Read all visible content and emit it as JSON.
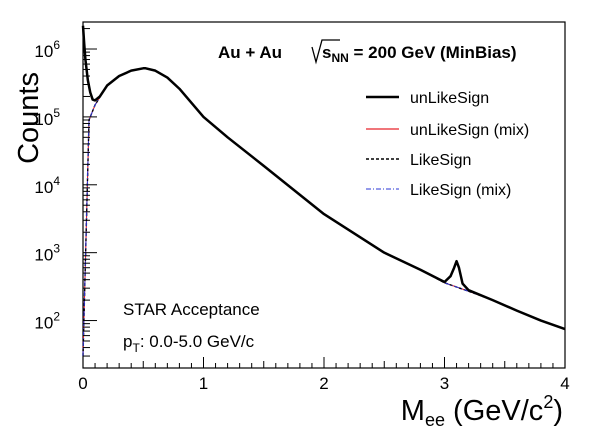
{
  "chart_data": {
    "type": "line",
    "xlabel_main": "M",
    "xlabel_sub": "ee",
    "xlabel_rest": " (GeV/c",
    "xlabel_sup": "2",
    "xlabel_close": ")",
    "ylabel": "Counts",
    "xlim": [
      0,
      4
    ],
    "ylim": [
      20,
      2500000
    ],
    "yscale": "log",
    "x_ticks": [
      0,
      1,
      2,
      3,
      4
    ],
    "x_tick_labels": [
      "0",
      "1",
      "2",
      "3",
      "4"
    ],
    "y_ticks": [
      100,
      1000,
      10000,
      100000,
      1000000
    ],
    "y_tick_base": "10",
    "y_tick_exponents": [
      "2",
      "3",
      "4",
      "5",
      "6"
    ],
    "grid": false,
    "legend_position": "top-right",
    "annotations": {
      "system": "Au + Au",
      "energy_prefix": "s",
      "energy_sub": "NN",
      "energy_suffix": " = 200 GeV (MinBias)",
      "acceptance": "STAR Acceptance",
      "pt_prefix": "p",
      "pt_sub": "T",
      "pt_suffix": ": 0.0-5.0 GeV/c"
    },
    "series": [
      {
        "name": "unLikeSign",
        "color": "#000000",
        "style": "solid-thick",
        "x": [
          0.0,
          0.01,
          0.02,
          0.04,
          0.06,
          0.08,
          0.1,
          0.14,
          0.2,
          0.3,
          0.4,
          0.5,
          0.52,
          0.6,
          0.7,
          0.8,
          1.0,
          1.2,
          1.5,
          2.0,
          2.5,
          2.8,
          3.0,
          3.05,
          3.08,
          3.1,
          3.12,
          3.15,
          3.2,
          3.4,
          3.6,
          3.8,
          4.0
        ],
        "values": [
          2200000,
          1200000,
          700000,
          350000,
          230000,
          180000,
          175000,
          200000,
          290000,
          400000,
          480000,
          520000,
          520000,
          480000,
          380000,
          260000,
          100000,
          50000,
          19000,
          3700,
          1000,
          560,
          370,
          450,
          600,
          750,
          600,
          350,
          280,
          200,
          140,
          100,
          75
        ]
      },
      {
        "name": "unLikeSign (mix)",
        "color": "#e8232a",
        "style": "solid-thin",
        "x": [
          0.0,
          0.05,
          0.1,
          0.14,
          0.2,
          0.3,
          0.4,
          0.5,
          0.52,
          0.6,
          0.7,
          0.8,
          1.0,
          1.2,
          1.5,
          2.0,
          2.5,
          2.8,
          3.0,
          3.2,
          3.4,
          3.6,
          3.8,
          4.0
        ],
        "values": [
          30,
          90000,
          150000,
          195000,
          290000,
          400000,
          480000,
          520000,
          520000,
          480000,
          380000,
          260000,
          100000,
          50000,
          19000,
          3700,
          1000,
          560,
          360,
          270,
          200,
          140,
          100,
          75
        ]
      },
      {
        "name": "LikeSign",
        "color": "#000000",
        "style": "dashed",
        "x": [
          0.0,
          0.05,
          0.1,
          0.14,
          0.2,
          0.3,
          0.4,
          0.5,
          0.52,
          0.6,
          0.7,
          0.8,
          1.0,
          1.2,
          1.5,
          2.0,
          2.5,
          2.8,
          3.0,
          3.2,
          3.4,
          3.6,
          3.8,
          4.0
        ],
        "values": [
          30,
          90000,
          150000,
          195000,
          290000,
          400000,
          480000,
          520000,
          520000,
          480000,
          380000,
          260000,
          100000,
          50000,
          19000,
          3700,
          1000,
          560,
          360,
          270,
          200,
          140,
          100,
          75
        ]
      },
      {
        "name": "LikeSign (mix)",
        "color": "#2a36d6",
        "style": "dashdot",
        "x": [
          0.0,
          0.05,
          0.1,
          0.14,
          0.2,
          0.3,
          0.4,
          0.5,
          0.52,
          0.6,
          0.7,
          0.8,
          1.0,
          1.2,
          1.5,
          2.0,
          2.5,
          2.8,
          3.0,
          3.2,
          3.4,
          3.6,
          3.8,
          4.0
        ],
        "values": [
          30,
          90000,
          150000,
          195000,
          290000,
          400000,
          480000,
          520000,
          520000,
          480000,
          380000,
          260000,
          100000,
          50000,
          19000,
          3700,
          1000,
          560,
          360,
          270,
          200,
          140,
          100,
          75
        ]
      }
    ]
  }
}
